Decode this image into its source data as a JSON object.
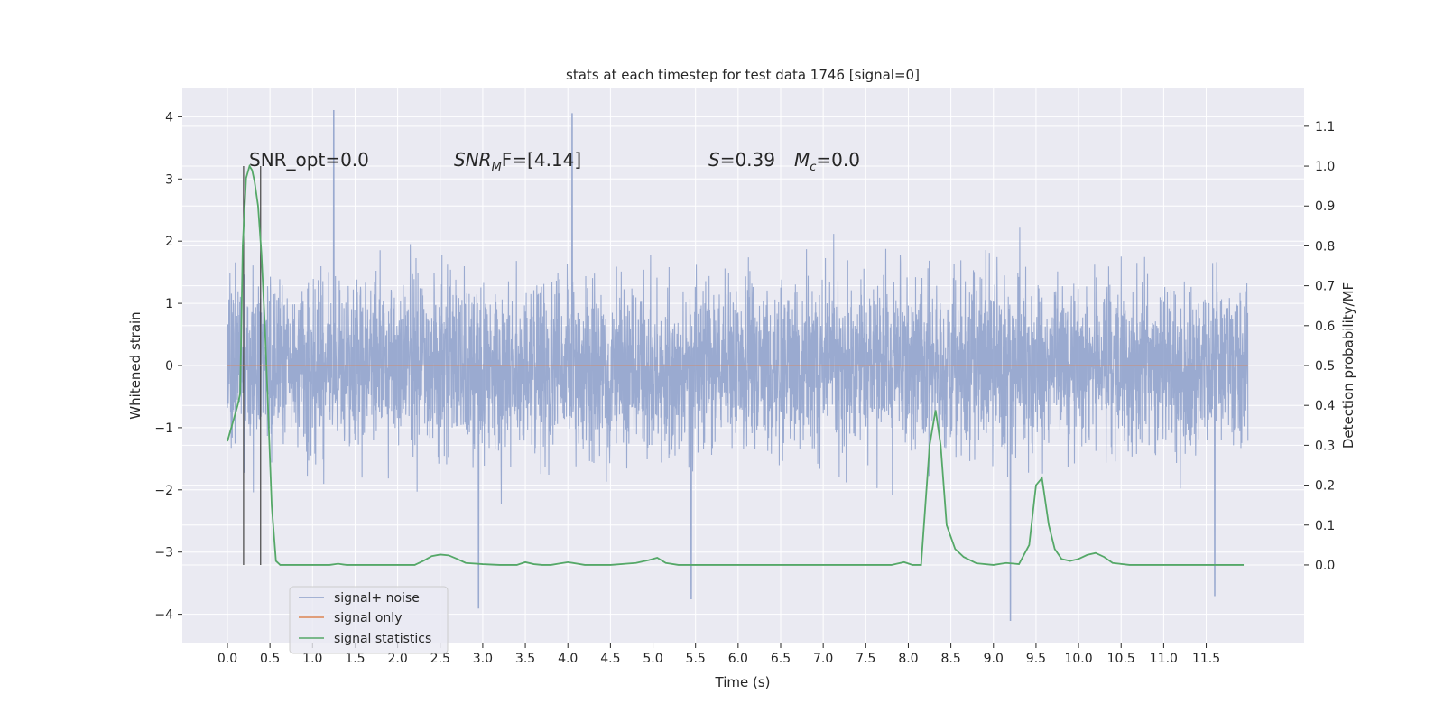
{
  "chart_data": {
    "type": "line",
    "title": "stats at each timestep for test data 1746 [signal=0]",
    "xlabel": "Time (s)",
    "ylabel": "Whitened strain",
    "y2label": "Detection probability/MF",
    "xlim": [
      -0.53,
      12.65
    ],
    "ylim": [
      -4.47,
      4.47
    ],
    "y2lim": [
      -0.197,
      1.197
    ],
    "x_ticks": [
      "0.0",
      "0.5",
      "1.0",
      "1.5",
      "2.0",
      "2.5",
      "3.0",
      "3.5",
      "4.0",
      "4.5",
      "5.0",
      "5.5",
      "6.0",
      "6.5",
      "7.0",
      "7.5",
      "8.0",
      "8.5",
      "9.0",
      "9.5",
      "10.0",
      "10.5",
      "11.0",
      "11.5"
    ],
    "y_ticks": [
      "4",
      "3",
      "2",
      "1",
      "0",
      "−1",
      "−2",
      "−3",
      "−4"
    ],
    "y2_ticks": [
      "1.1",
      "1.0",
      "0.9",
      "0.8",
      "0.7",
      "0.6",
      "0.5",
      "0.4",
      "0.3",
      "0.2",
      "0.1",
      "0.0"
    ],
    "grid": true,
    "legend_position": "lower-left",
    "annotations": {
      "snr_opt": "SNR_opt=0.0",
      "snr_mf_main": "SNR",
      "snr_mf_sub": "M",
      "snr_mf_rest": "F=[4.14]",
      "s_label": "S",
      "s_rest": "=0.39",
      "mc_main": "M",
      "mc_sub": "c",
      "mc_rest": "=0.0"
    },
    "vertical_markers": [
      0.19,
      0.39
    ],
    "series": [
      {
        "name": "signal+ noise",
        "axis": "left",
        "color": "#8c9fca",
        "description_range": [
          0.0,
          11.99
        ],
        "peaks": [
          {
            "x": 1.25,
            "y": 4.1
          },
          {
            "x": 4.05,
            "y": 4.05
          },
          {
            "x": 9.2,
            "y": -4.1
          },
          {
            "x": 2.95,
            "y": -3.9
          },
          {
            "x": 5.45,
            "y": -3.75
          },
          {
            "x": 11.6,
            "y": -3.7
          }
        ]
      },
      {
        "name": "signal only",
        "axis": "left",
        "color": "#dd8452",
        "x": [
          0.0,
          11.99
        ],
        "y": [
          0.0,
          0.0
        ]
      },
      {
        "name": "signal statistics",
        "axis": "right",
        "color": "#55a868",
        "x": [
          0.0,
          0.12,
          0.15,
          0.18,
          0.22,
          0.26,
          0.29,
          0.32,
          0.36,
          0.4,
          0.44,
          0.48,
          0.52,
          0.57,
          0.62,
          0.7,
          0.8,
          1.0,
          1.2,
          1.3,
          1.4,
          1.6,
          1.8,
          2.0,
          2.2,
          2.3,
          2.4,
          2.5,
          2.6,
          2.7,
          2.8,
          3.0,
          3.2,
          3.4,
          3.5,
          3.6,
          3.7,
          3.8,
          4.0,
          4.2,
          4.5,
          4.8,
          4.95,
          5.05,
          5.15,
          5.3,
          5.6,
          6.0,
          6.5,
          7.0,
          7.5,
          7.8,
          7.95,
          8.05,
          8.15,
          8.25,
          8.32,
          8.38,
          8.45,
          8.55,
          8.65,
          8.8,
          9.0,
          9.15,
          9.3,
          9.42,
          9.5,
          9.57,
          9.65,
          9.72,
          9.8,
          9.9,
          10.0,
          10.1,
          10.2,
          10.3,
          10.4,
          10.6,
          11.0,
          11.5,
          11.94
        ],
        "y": [
          0.31,
          0.4,
          0.43,
          0.8,
          0.97,
          1.0,
          0.99,
          0.96,
          0.9,
          0.78,
          0.6,
          0.38,
          0.15,
          0.01,
          0.0,
          0.0,
          0.0,
          0.0,
          0.0,
          0.003,
          0.0,
          0.0,
          0.0,
          0.0,
          0.0,
          0.01,
          0.022,
          0.026,
          0.024,
          0.015,
          0.005,
          0.002,
          0.0,
          0.0,
          0.007,
          0.002,
          0.0,
          0.0,
          0.007,
          0.0,
          0.0,
          0.005,
          0.012,
          0.018,
          0.005,
          0.0,
          0.0,
          0.0,
          0.0,
          0.0,
          0.0,
          0.0,
          0.007,
          0.0,
          0.0,
          0.3,
          0.388,
          0.3,
          0.1,
          0.04,
          0.02,
          0.004,
          0.0,
          0.005,
          0.002,
          0.05,
          0.2,
          0.218,
          0.1,
          0.04,
          0.015,
          0.01,
          0.015,
          0.025,
          0.03,
          0.02,
          0.005,
          0.0,
          0.0,
          0.0,
          0.0
        ]
      }
    ]
  }
}
